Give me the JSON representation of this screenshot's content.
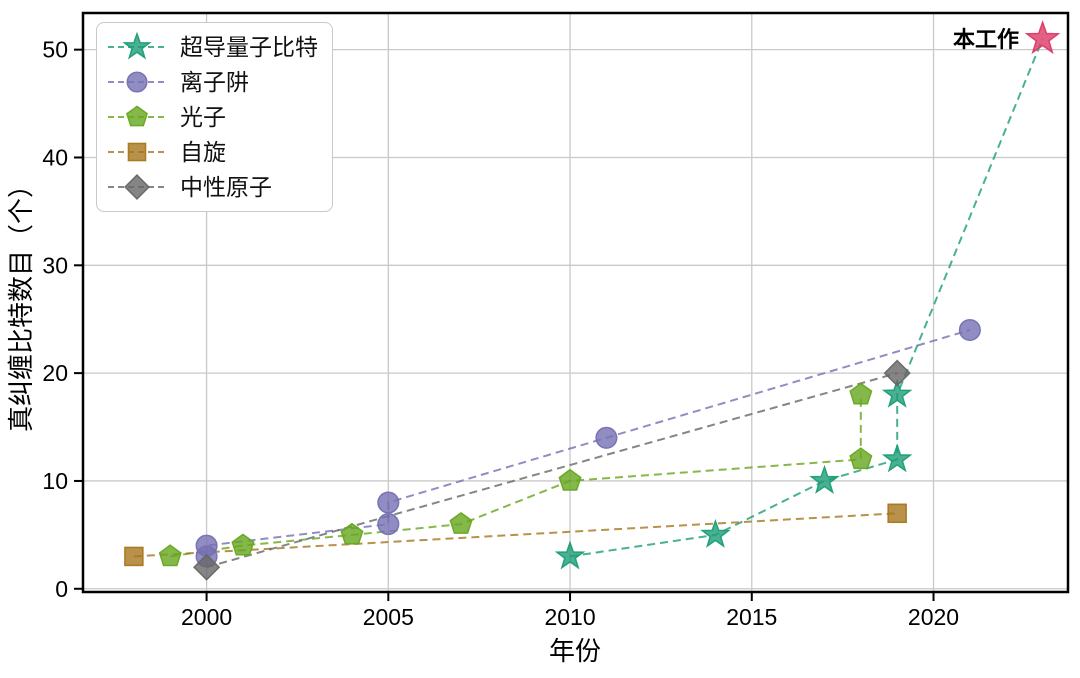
{
  "chart_data": {
    "type": "line",
    "title": "",
    "xlabel": "年份",
    "ylabel": "真纠缠比特数目（个）",
    "xticks": [
      2000,
      2005,
      2010,
      2015,
      2020
    ],
    "yticks": [
      0,
      10,
      20,
      30,
      40,
      50
    ],
    "xlim": [
      1996.6,
      2023.7
    ],
    "ylim": [
      -0.3,
      53.4
    ],
    "grid": true,
    "grid_color": "#c9c9c9",
    "background": "#ffffff",
    "legend_position": "upper-left",
    "line_style": "dashed",
    "series": [
      {
        "name": "超导量子比特",
        "marker": "star",
        "color": "#1b9e77",
        "points": [
          [
            2010,
            3
          ],
          [
            2014,
            5
          ],
          [
            2017,
            10
          ],
          [
            2019,
            12
          ],
          [
            2019,
            18
          ],
          [
            2023,
            51
          ]
        ],
        "highlight": {
          "index": 5,
          "color": "#dc3a66",
          "label": "本工作"
        }
      },
      {
        "name": "离子阱",
        "marker": "circle",
        "color": "#7570b3",
        "points": [
          [
            2000,
            3
          ],
          [
            2000,
            4
          ],
          [
            2005,
            6
          ],
          [
            2005,
            8
          ],
          [
            2011,
            14
          ],
          [
            2021,
            24
          ]
        ]
      },
      {
        "name": "光子",
        "marker": "pentagon",
        "color": "#66a61e",
        "points": [
          [
            1999,
            3
          ],
          [
            2001,
            4
          ],
          [
            2004,
            5
          ],
          [
            2007,
            6
          ],
          [
            2010,
            10
          ],
          [
            2018,
            12
          ],
          [
            2018,
            18
          ]
        ]
      },
      {
        "name": "自旋",
        "marker": "square",
        "color": "#a6761d",
        "points": [
          [
            1998,
            3
          ],
          [
            2019,
            7
          ]
        ]
      },
      {
        "name": "中性原子",
        "marker": "diamond",
        "color": "#666666",
        "points": [
          [
            2000,
            2
          ],
          [
            2019,
            20
          ]
        ]
      }
    ],
    "annotation": {
      "text": "本工作",
      "color": "#e0426b",
      "x": 2023,
      "y": 51
    }
  }
}
